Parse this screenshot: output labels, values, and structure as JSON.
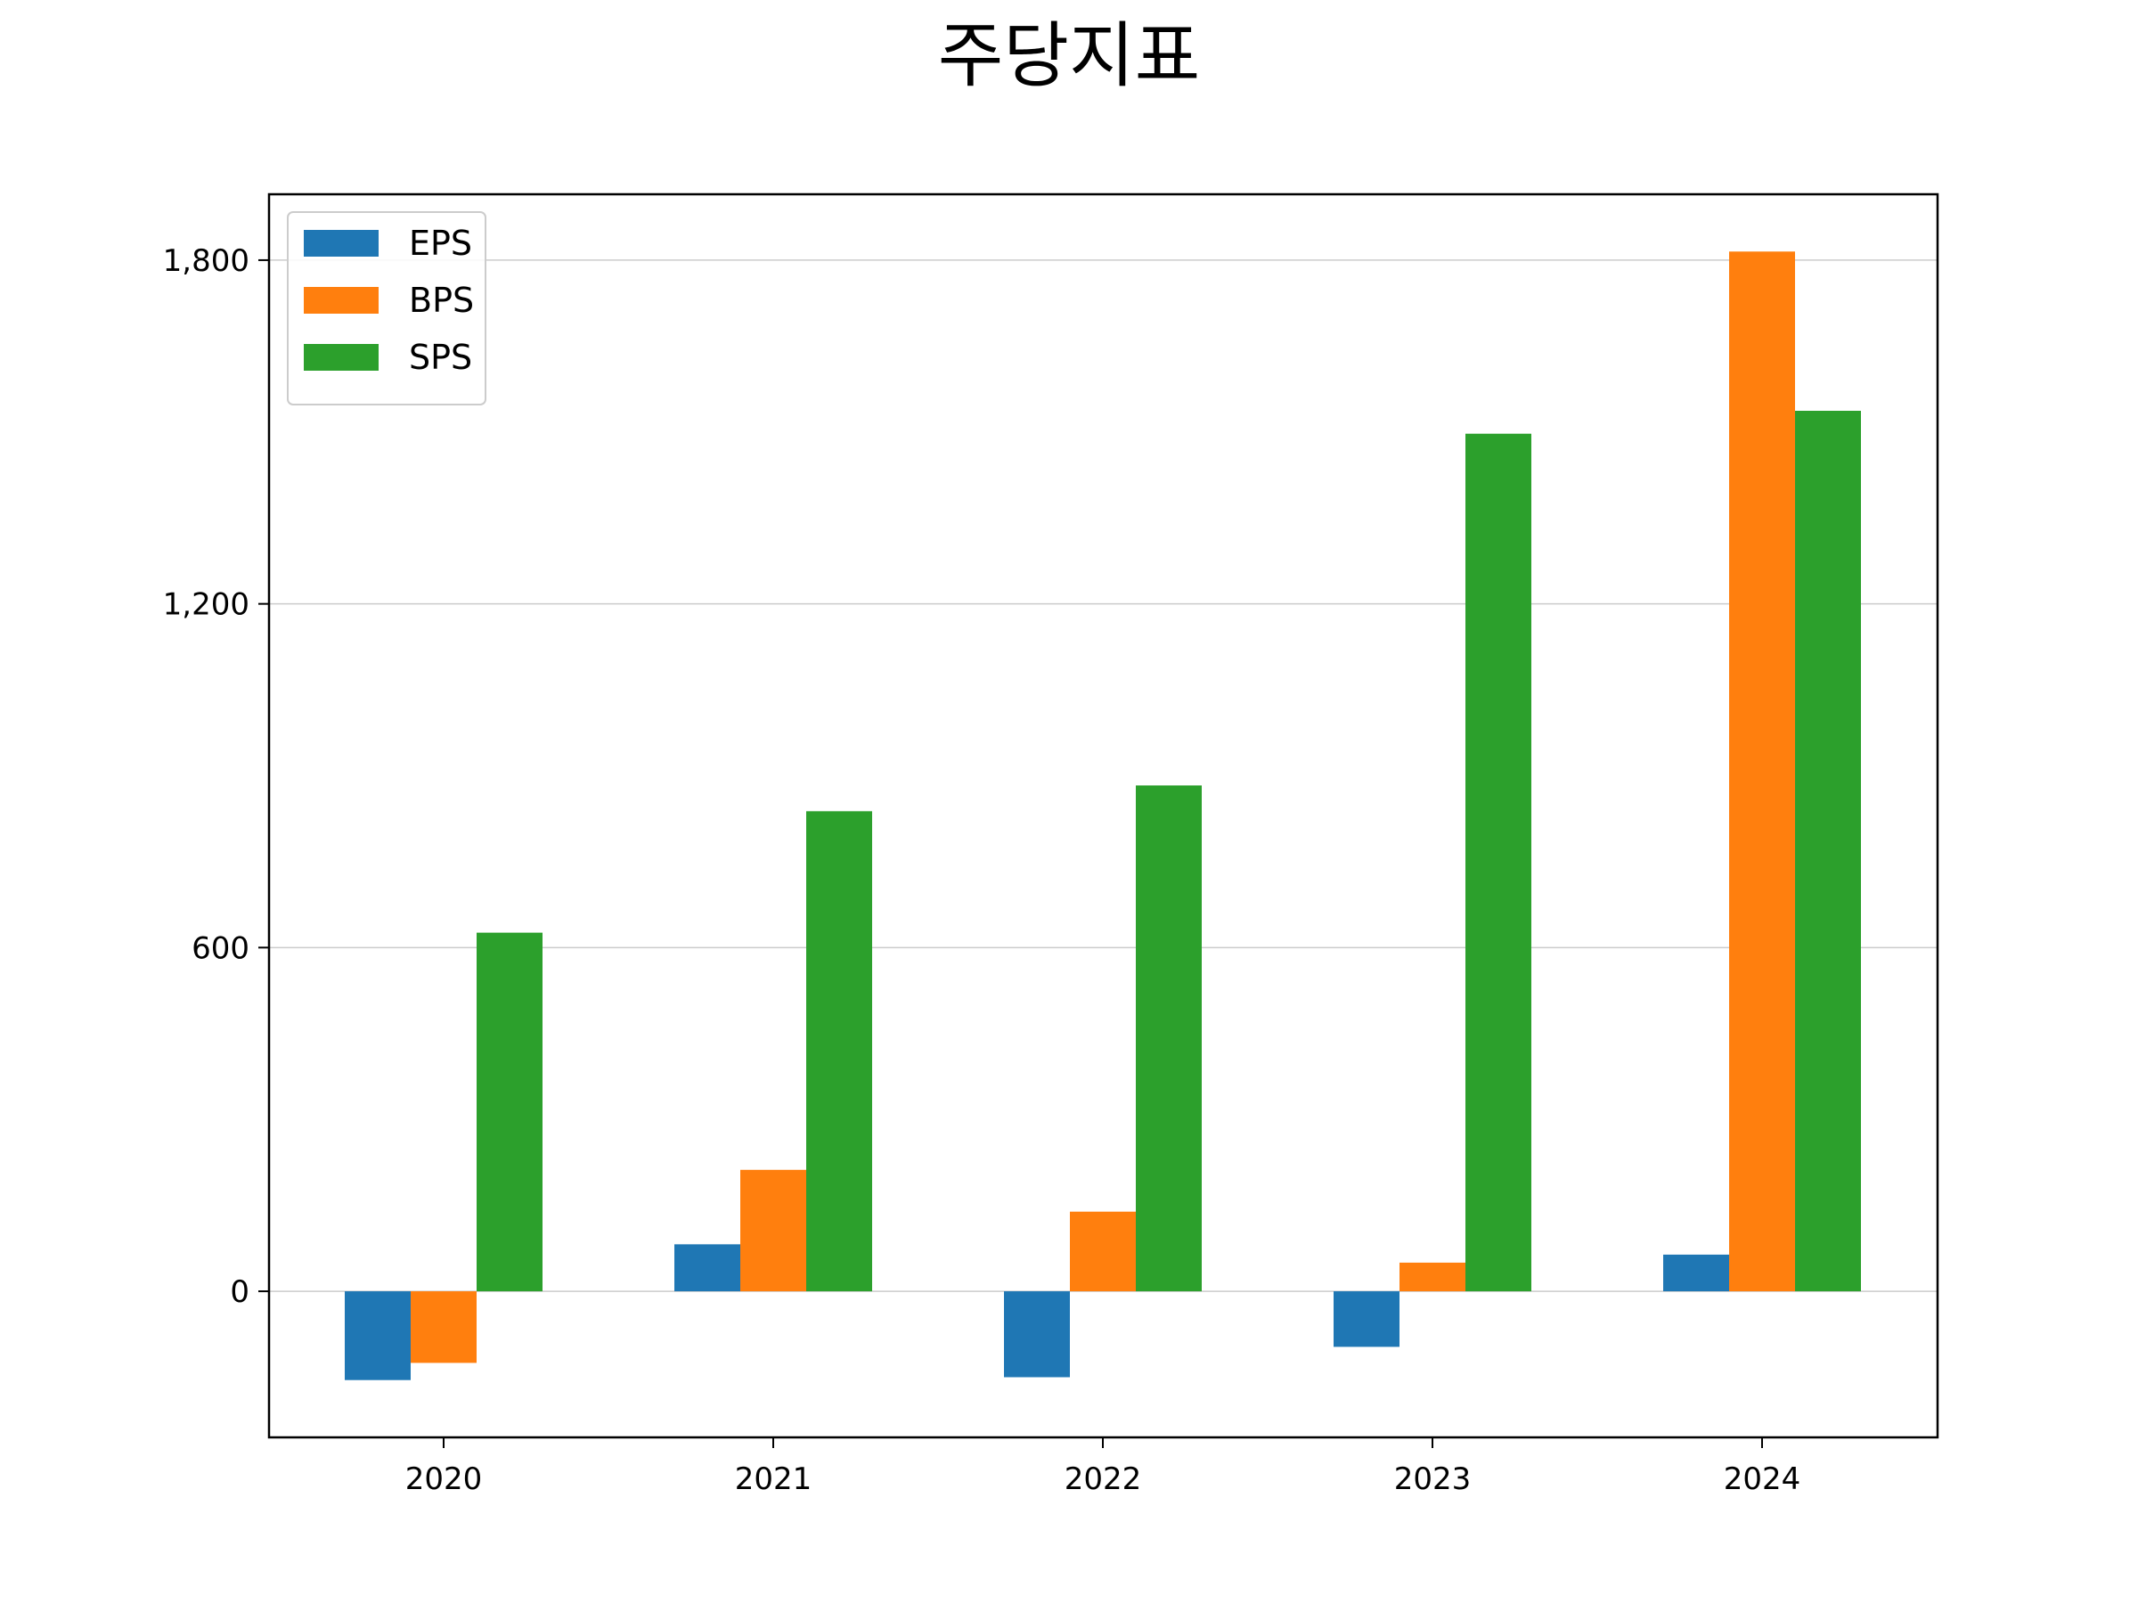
{
  "chart_data": {
    "type": "bar",
    "title": "주당지표",
    "xlabel": "",
    "ylabel": "",
    "categories": [
      "2020",
      "2021",
      "2022",
      "2023",
      "2024"
    ],
    "series": [
      {
        "name": "EPS",
        "color": "#1f77b4",
        "values": [
          -155,
          82,
          -150,
          -97,
          64
        ]
      },
      {
        "name": "BPS",
        "color": "#ff7f0e",
        "values": [
          -125,
          212,
          139,
          50,
          1815
        ]
      },
      {
        "name": "SPS",
        "color": "#2ca02c",
        "values": [
          626,
          838,
          883,
          1497,
          1537
        ]
      }
    ],
    "ylim": [
      -255,
      1915
    ],
    "yticks": [
      0,
      600,
      1200,
      1800
    ],
    "ytick_labels": [
      "0",
      "600",
      "1,200",
      "1,800"
    ],
    "grid": "y",
    "legend": "top-left"
  }
}
